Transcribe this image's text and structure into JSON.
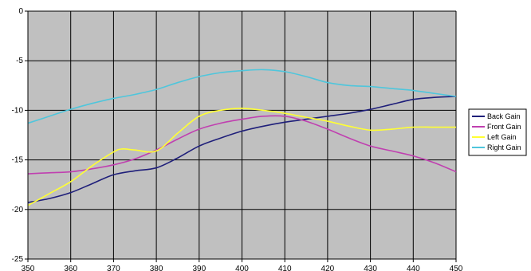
{
  "chart_data": {
    "type": "line",
    "title": "",
    "xlabel": "",
    "ylabel": "",
    "xlim": [
      350,
      450
    ],
    "ylim": [
      -25,
      0
    ],
    "x_ticks": [
      350,
      360,
      370,
      380,
      390,
      400,
      410,
      420,
      430,
      440,
      450
    ],
    "y_ticks": [
      0,
      -5,
      -10,
      -15,
      -20,
      -25
    ],
    "grid": true,
    "plot_background": "#c0c0c0",
    "legend_position": "right",
    "series": [
      {
        "name": "Back Gain",
        "color": "#1f1f7a",
        "x": [
          350,
          355,
          360,
          365,
          370,
          375,
          380,
          385,
          390,
          395,
          400,
          405,
          410,
          415,
          420,
          425,
          430,
          435,
          440,
          445,
          450
        ],
        "values": [
          -19.3,
          -18.9,
          -18.3,
          -17.4,
          -16.5,
          -16.1,
          -15.8,
          -14.8,
          -13.6,
          -12.8,
          -12.1,
          -11.6,
          -11.2,
          -10.9,
          -10.6,
          -10.3,
          -9.9,
          -9.4,
          -8.9,
          -8.7,
          -8.6
        ]
      },
      {
        "name": "Front Gain",
        "color": "#c040b0",
        "x": [
          350,
          355,
          360,
          365,
          370,
          375,
          380,
          385,
          390,
          395,
          400,
          405,
          410,
          415,
          420,
          425,
          430,
          435,
          440,
          445,
          450
        ],
        "values": [
          -16.4,
          -16.3,
          -16.2,
          -15.9,
          -15.5,
          -14.9,
          -14.0,
          -12.9,
          -11.9,
          -11.3,
          -10.9,
          -10.6,
          -10.6,
          -11.1,
          -11.9,
          -12.8,
          -13.6,
          -14.1,
          -14.6,
          -15.3,
          -16.2
        ]
      },
      {
        "name": "Left Gain",
        "color": "#ffff33",
        "x": [
          350,
          355,
          360,
          365,
          370,
          372,
          375,
          380,
          385,
          390,
          395,
          400,
          405,
          410,
          415,
          420,
          425,
          430,
          435,
          440,
          445,
          450
        ],
        "values": [
          -19.6,
          -18.4,
          -17.2,
          -15.6,
          -14.2,
          -13.9,
          -14.0,
          -14.1,
          -12.3,
          -10.6,
          -10.0,
          -9.8,
          -10.0,
          -10.3,
          -10.7,
          -11.1,
          -11.6,
          -12.0,
          -11.9,
          -11.7,
          -11.7,
          -11.7
        ]
      },
      {
        "name": "Right Gain",
        "color": "#4fc6dc",
        "x": [
          350,
          355,
          360,
          365,
          370,
          375,
          380,
          385,
          390,
          395,
          400,
          405,
          410,
          415,
          420,
          425,
          430,
          435,
          440,
          445,
          450
        ],
        "values": [
          -11.3,
          -10.6,
          -9.9,
          -9.3,
          -8.8,
          -8.4,
          -7.9,
          -7.2,
          -6.6,
          -6.2,
          -6.0,
          -5.9,
          -6.1,
          -6.6,
          -7.2,
          -7.5,
          -7.6,
          -7.8,
          -8.0,
          -8.3,
          -8.6
        ]
      }
    ]
  }
}
